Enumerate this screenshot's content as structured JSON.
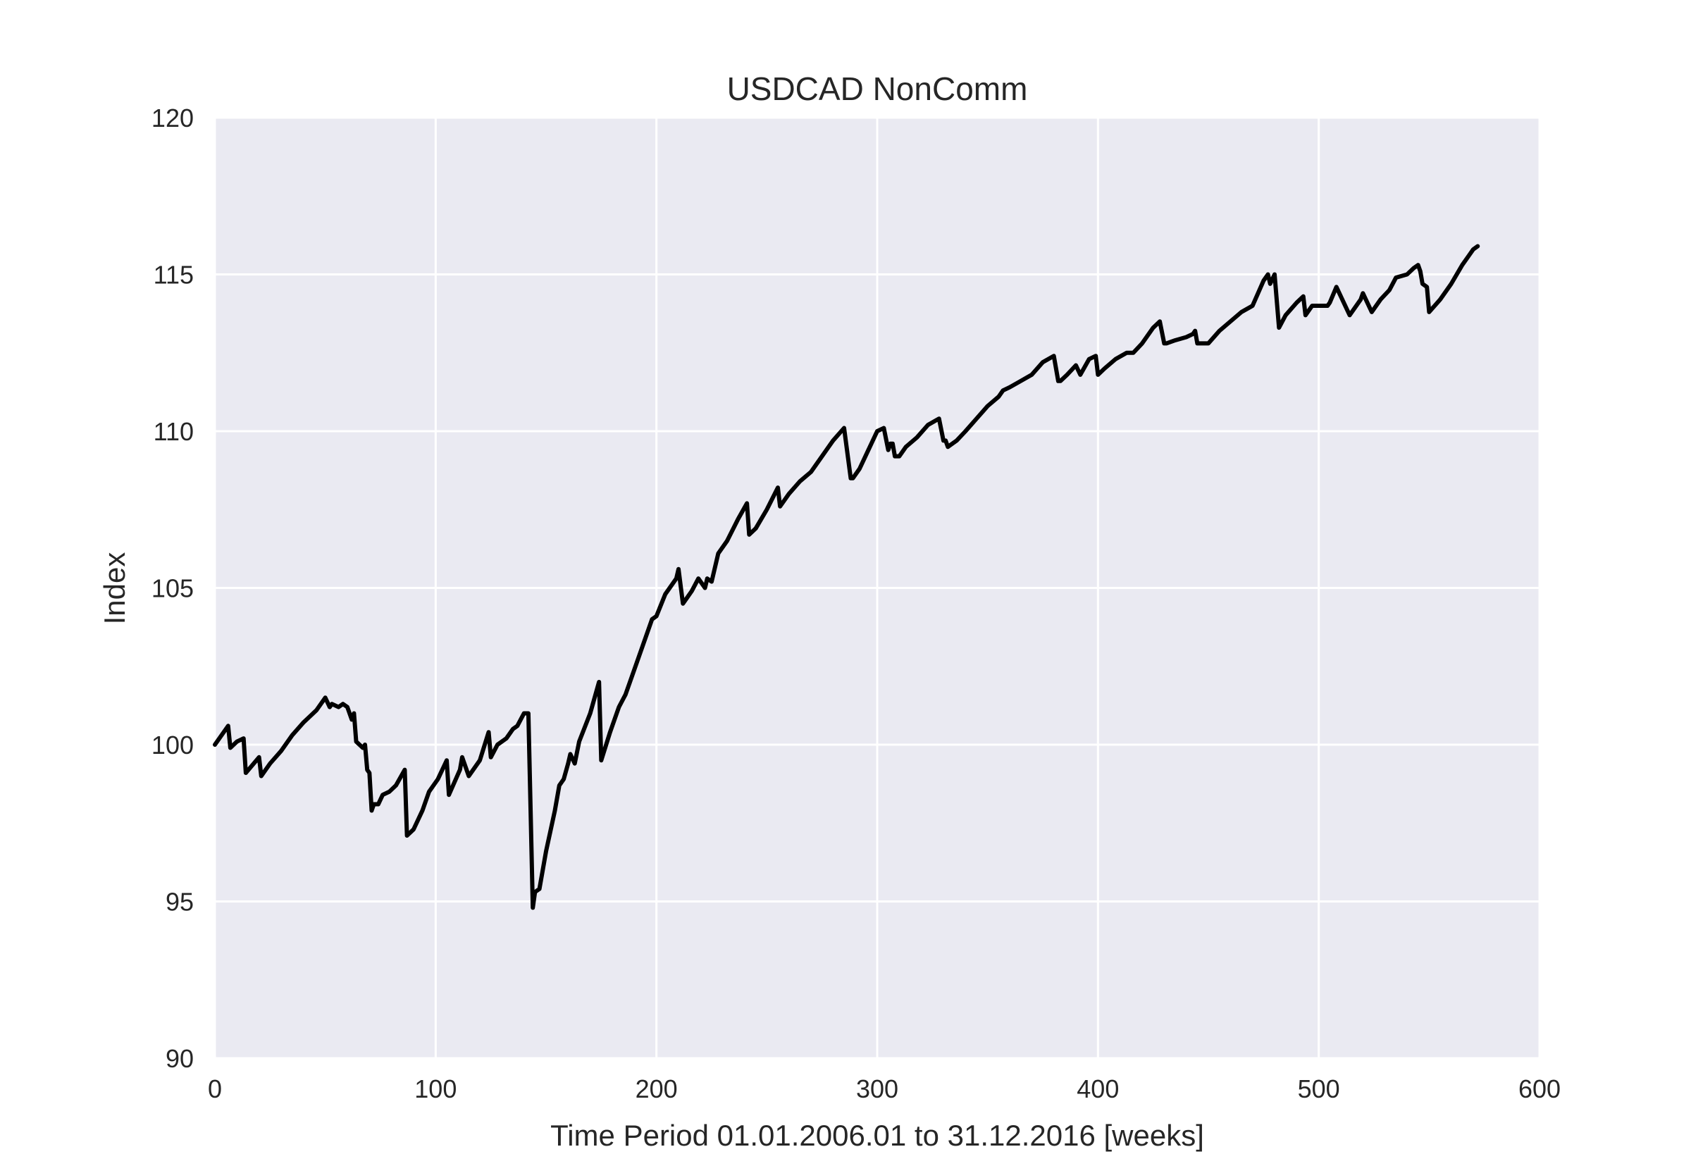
{
  "chart_data": {
    "type": "line",
    "title": "USDCAD NonComm",
    "xlabel": "Time Period 01.01.2006.01 to 31.12.2016 [weeks]",
    "ylabel": "Index",
    "xlim": [
      0,
      600
    ],
    "ylim": [
      90,
      120
    ],
    "xticks": [
      0,
      100,
      200,
      300,
      400,
      500,
      600
    ],
    "yticks": [
      90,
      95,
      100,
      105,
      110,
      115,
      120
    ],
    "xtick_labels": [
      "0",
      "100",
      "200",
      "300",
      "400",
      "500",
      "600"
    ],
    "ytick_labels": [
      "90",
      "95",
      "100",
      "105",
      "110",
      "115",
      "120"
    ],
    "grid": true,
    "background": "#eaeaf2",
    "gridColor": "#ffffff",
    "lineColor": "#000000",
    "series": [
      {
        "x": [
          0,
          6,
          7,
          10,
          13,
          14,
          20,
          21,
          25,
          30,
          35,
          40,
          46,
          50,
          52,
          53,
          56,
          58,
          60,
          62,
          63,
          64,
          67,
          68,
          69,
          70,
          71,
          72,
          74,
          76,
          79,
          82,
          86,
          87,
          90,
          94,
          97,
          101,
          105,
          106,
          111,
          112,
          115,
          120,
          124,
          125,
          128,
          132,
          135,
          137,
          140,
          141,
          142,
          143,
          144,
          145,
          147,
          150,
          154,
          156,
          158,
          160,
          161,
          163,
          165,
          170,
          174,
          175,
          179,
          183,
          186,
          190,
          194,
          198,
          200,
          204,
          209,
          210,
          212,
          214,
          216,
          219,
          222,
          223,
          225,
          228,
          232,
          237,
          241,
          242,
          245,
          250,
          255,
          256,
          260,
          265,
          270,
          275,
          280,
          285,
          288,
          289,
          292,
          296,
          300,
          303,
          305,
          306,
          307,
          308,
          310,
          313,
          318,
          323,
          328,
          330,
          331,
          332,
          336,
          340,
          345,
          350,
          355,
          357,
          360,
          365,
          370,
          375,
          380,
          382,
          383,
          386,
          390,
          392,
          396,
          399,
          400,
          403,
          408,
          413,
          416,
          420,
          425,
          428,
          430,
          431,
          435,
          440,
          443,
          444,
          445,
          450,
          455,
          460,
          465,
          470,
          475,
          477,
          478,
          480,
          482,
          485,
          490,
          493,
          494,
          497,
          501,
          503,
          504,
          505,
          508,
          514,
          519,
          520,
          524,
          528,
          532,
          535,
          540,
          543,
          545,
          546,
          547,
          549,
          550,
          555,
          560,
          565,
          568,
          570,
          572
        ],
        "y": [
          100.0,
          100.6,
          99.9,
          100.1,
          100.2,
          99.1,
          99.6,
          99.0,
          99.4,
          99.8,
          100.3,
          100.7,
          101.1,
          101.5,
          101.2,
          101.3,
          101.2,
          101.3,
          101.2,
          100.8,
          101.0,
          100.1,
          99.9,
          100.0,
          99.2,
          99.1,
          97.9,
          98.1,
          98.1,
          98.4,
          98.5,
          98.7,
          99.2,
          97.1,
          97.3,
          97.9,
          98.5,
          98.9,
          99.5,
          98.4,
          99.2,
          99.6,
          99.0,
          99.5,
          100.4,
          99.6,
          100.0,
          100.2,
          100.5,
          100.6,
          101.0,
          101.0,
          101.0,
          97.9,
          94.8,
          95.3,
          95.4,
          96.6,
          97.9,
          98.7,
          98.9,
          99.4,
          99.7,
          99.4,
          100.1,
          101.0,
          102.0,
          99.5,
          100.4,
          101.2,
          101.6,
          102.4,
          103.2,
          104.0,
          104.1,
          104.8,
          105.3,
          105.6,
          104.5,
          104.7,
          104.9,
          105.3,
          105.0,
          105.3,
          105.2,
          106.1,
          106.5,
          107.2,
          107.7,
          106.7,
          106.9,
          107.5,
          108.2,
          107.6,
          108.0,
          108.4,
          108.7,
          109.2,
          109.7,
          110.1,
          108.5,
          108.5,
          108.8,
          109.4,
          110.0,
          110.1,
          109.4,
          109.6,
          109.6,
          109.2,
          109.2,
          109.5,
          109.8,
          110.2,
          110.4,
          109.7,
          109.7,
          109.5,
          109.7,
          110.0,
          110.4,
          110.8,
          111.1,
          111.3,
          111.4,
          111.6,
          111.8,
          112.2,
          112.4,
          111.6,
          111.6,
          111.8,
          112.1,
          111.8,
          112.3,
          112.4,
          111.8,
          112.0,
          112.3,
          112.5,
          112.5,
          112.8,
          113.3,
          113.5,
          112.8,
          112.8,
          112.9,
          113.0,
          113.1,
          113.2,
          112.8,
          112.8,
          113.2,
          113.5,
          113.8,
          114.0,
          114.8,
          115.0,
          114.7,
          115.0,
          113.3,
          113.7,
          114.1,
          114.3,
          113.7,
          114.0,
          114.0,
          114.0,
          114.0,
          114.1,
          114.6,
          113.7,
          114.2,
          114.4,
          113.8,
          114.2,
          114.5,
          114.9,
          115.0,
          115.2,
          115.3,
          115.1,
          114.7,
          114.6,
          113.8,
          114.2,
          114.7,
          115.3,
          115.6,
          115.8,
          115.9
        ]
      }
    ]
  }
}
